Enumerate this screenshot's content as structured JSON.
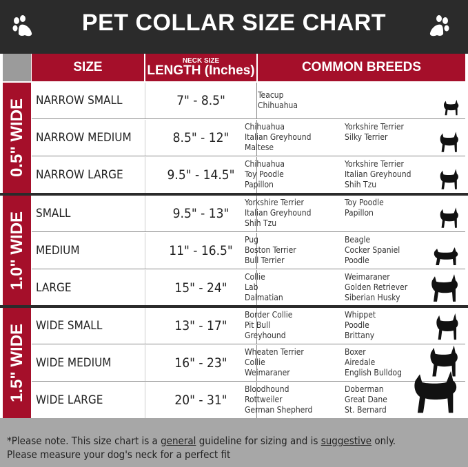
{
  "title": "PET COLLAR SIZE CHART",
  "headers": {
    "size": "SIZE",
    "length_small": "NECK SIZE",
    "length": "LENGTH (Inches)",
    "breeds": "COMMON BREEDS"
  },
  "groups": [
    {
      "label": "0.5\" WIDE",
      "rows": [
        {
          "size": "NARROW SMALL",
          "length": "7\" - 8.5\"",
          "breeds_left": [
            "Teacup",
            "Chihuahua"
          ],
          "breeds_right": [],
          "dog": "yorkie-silhouette"
        },
        {
          "size": "NARROW MEDIUM",
          "length": "8.5\" - 12\"",
          "breeds_left": [
            "Chihuahua",
            "Italian Greyhound",
            "Maltese"
          ],
          "breeds_right": [
            "Yorkshire Terrier",
            "Silky Terrier"
          ],
          "dog": "chihuahua-silhouette"
        },
        {
          "size": "NARROW LARGE",
          "length": "9.5\" - 14.5\"",
          "breeds_left": [
            "Chihuahua",
            "Toy Poodle",
            "Papillon"
          ],
          "breeds_right": [
            "Yorkshire Terrier",
            "Italian Greyhound",
            "Shih Tzu"
          ],
          "dog": "pomeranian-silhouette"
        }
      ]
    },
    {
      "label": "1.0\" WIDE",
      "rows": [
        {
          "size": "SMALL",
          "length": "9.5\" - 13\"",
          "breeds_left": [
            "Yorkshire Terrier",
            "Italian Greyhound",
            "Shih Tzu"
          ],
          "breeds_right": [
            "Toy Poodle",
            "Papillon"
          ],
          "dog": "pomeranian-silhouette"
        },
        {
          "size": "MEDIUM",
          "length": "11\" - 16.5\"",
          "breeds_left": [
            "Pug",
            "Boston Terrier",
            "Bull Terrier"
          ],
          "breeds_right": [
            "Beagle",
            "Cocker Spaniel",
            "Poodle"
          ],
          "dog": "pug-silhouette"
        },
        {
          "size": "LARGE",
          "length": "15\" - 24\"",
          "breeds_left": [
            "Collie",
            "Lab",
            "Dalmatian"
          ],
          "breeds_right": [
            "Weimaraner",
            "Golden Retriever",
            "Siberian Husky"
          ],
          "dog": "shepherd-silhouette"
        }
      ]
    },
    {
      "label": "1.5\" WIDE",
      "rows": [
        {
          "size": "WIDE SMALL",
          "length": "13\" - 17\"",
          "breeds_left": [
            "Border Collie",
            "Pit Bull",
            "Greyhound"
          ],
          "breeds_right": [
            "Whippet",
            "Poodle",
            "Brittany"
          ],
          "dog": "bulldog-silhouette"
        },
        {
          "size": "WIDE MEDIUM",
          "length": "16\" - 23\"",
          "breeds_left": [
            "Wheaten Terrier",
            "Collie",
            "Weimaraner"
          ],
          "breeds_right": [
            "Boxer",
            "Airedale",
            "English Bulldog"
          ],
          "dog": "pitbull-silhouette"
        },
        {
          "size": "WIDE LARGE",
          "length": "20\" - 31\"",
          "breeds_left": [
            "Bloodhound",
            "Rottweiler",
            "German Shepherd"
          ],
          "breeds_right": [
            "Doberman",
            "Great Dane",
            "St. Bernard"
          ],
          "dog": "doberman-silhouette"
        }
      ]
    }
  ],
  "footer": {
    "p1": "*Please note. This size chart is a ",
    "u1": "general",
    "p2": " guideline for sizing and is ",
    "u2": "suggestive",
    "p3": " only.",
    "line2": "Please measure your dog's neck for a perfect fit"
  },
  "colors": {
    "header": "#2b2b2b",
    "accent": "#a50f2a",
    "footer": "#a7a7a7"
  }
}
